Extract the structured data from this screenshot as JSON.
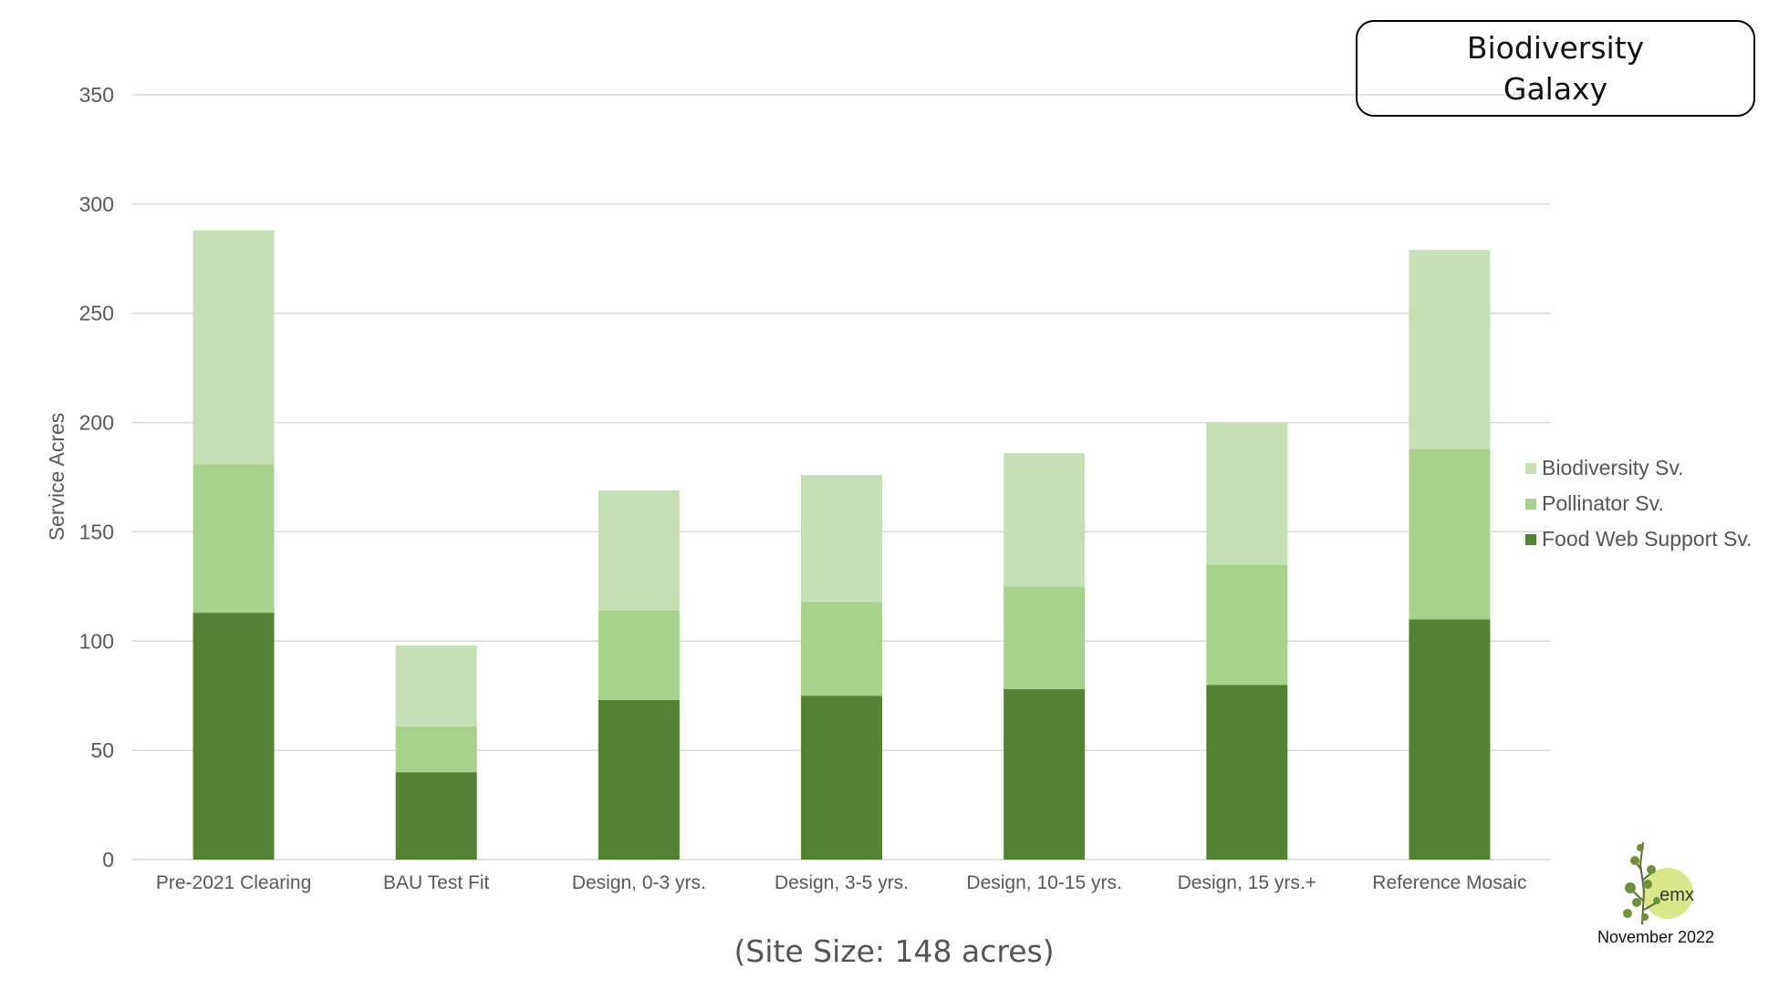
{
  "chart_data": {
    "type": "bar",
    "stacked": true,
    "title": "Biodiversity Galaxy",
    "title_lines": [
      "Biodiversity",
      "Galaxy"
    ],
    "subtitle": "(Site Size: 148 acres)",
    "xlabel": "",
    "ylabel": "Service Acres",
    "ylim": [
      0,
      350
    ],
    "yticks": [
      0,
      50,
      100,
      150,
      200,
      250,
      300,
      350
    ],
    "grid": true,
    "legend_position": "right",
    "categories": [
      "Pre-2021 Clearing",
      "BAU Test Fit",
      "Design, 0-3 yrs.",
      "Design, 3-5 yrs.",
      "Design, 10-15 yrs.",
      "Design, 15 yrs.+",
      "Reference Mosaic"
    ],
    "series": [
      {
        "name": "Food Web Support Sv.",
        "color": "#548235",
        "values": [
          113,
          40,
          73,
          75,
          78,
          80,
          110
        ]
      },
      {
        "name": "Pollinator Sv.",
        "color": "#a9d18e",
        "values": [
          68,
          21,
          41,
          43,
          47,
          55,
          78
        ]
      },
      {
        "name": "Biodiversity Sv.",
        "color": "#c5e0b4",
        "values": [
          107,
          37,
          55,
          58,
          61,
          65,
          91
        ]
      }
    ]
  },
  "legend_order": [
    "Biodiversity Sv.",
    "Pollinator Sv.",
    "Food Web Support Sv."
  ],
  "logo": {
    "brand": "emx",
    "date": "November 2022"
  },
  "colors": {
    "grid": "#d9d9d9",
    "axis_text": "#595959",
    "logo_circle": "#d9e88a"
  }
}
